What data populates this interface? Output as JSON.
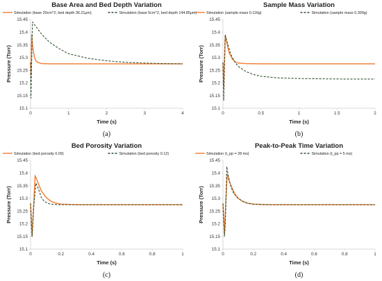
{
  "colors": {
    "orange": "#f4823a",
    "dark_green": "#2f4f2f",
    "axis": "#d9d9d9"
  },
  "chart_data": [
    {
      "panel": "a",
      "type": "line",
      "title": "Base Area and Bed Depth Variation",
      "xlabel": "Time (s)",
      "ylabel": "Pressure (Torr)",
      "xlim": [
        0,
        4
      ],
      "ylim": [
        15.1,
        15.45
      ],
      "xticks": [
        "0",
        "1",
        "2",
        "3",
        "4"
      ],
      "yticks": [
        "15.1",
        "15.15",
        "15.2",
        "15.25",
        "15.3",
        "15.35",
        "15.4",
        "15.45"
      ],
      "caption": "(a)",
      "legend": "top",
      "series": [
        {
          "name": "Simulation (base 20cm^2, bed depth 36.21μm)",
          "style": "solid",
          "x": [
            0,
            0.01,
            0.03,
            0.05,
            0.1,
            0.15,
            0.2,
            0.3,
            0.5,
            1,
            2,
            3,
            4
          ],
          "y": [
            15.28,
            15.23,
            15.39,
            15.35,
            15.3,
            15.285,
            15.28,
            15.276,
            15.275,
            15.275,
            15.275,
            15.275,
            15.275
          ]
        },
        {
          "name": "Simulation (base 5cm^2, bed depth 144.85μm)",
          "style": "dashed",
          "x": [
            0,
            0.01,
            0.05,
            0.1,
            0.2,
            0.3,
            0.5,
            0.75,
            1,
            1.5,
            2,
            2.5,
            3,
            3.5,
            4
          ],
          "y": [
            15.28,
            15.14,
            15.44,
            15.43,
            15.41,
            15.39,
            15.36,
            15.335,
            15.315,
            15.297,
            15.287,
            15.281,
            15.278,
            15.276,
            15.275
          ]
        }
      ]
    },
    {
      "panel": "b",
      "type": "line",
      "title": "Sample Mass Variation",
      "xlabel": "Time (s)",
      "ylabel": "Pressure (Torr)",
      "xlim": [
        0,
        2
      ],
      "ylim": [
        15.1,
        15.45
      ],
      "xticks": [
        "0",
        "0.5",
        "1",
        "1.5",
        "2"
      ],
      "yticks": [
        "15.1",
        "15.15",
        "15.2",
        "15.25",
        "15.3",
        "15.35",
        "15.4",
        "15.45"
      ],
      "caption": "(b)",
      "legend": "top",
      "series": [
        {
          "name": "Simulation (sample mass 0.116g)",
          "style": "solid",
          "x": [
            0,
            0.01,
            0.03,
            0.05,
            0.08,
            0.12,
            0.16,
            0.2,
            0.3,
            0.5,
            1,
            1.5,
            2
          ],
          "y": [
            15.28,
            15.18,
            15.385,
            15.36,
            15.32,
            15.295,
            15.283,
            15.278,
            15.276,
            15.275,
            15.275,
            15.275,
            15.275
          ]
        },
        {
          "name": "Simulation (sample mass 0.300g)",
          "style": "dashed",
          "x": [
            0,
            0.01,
            0.03,
            0.06,
            0.1,
            0.15,
            0.2,
            0.3,
            0.4,
            0.5,
            0.7,
            1,
            1.3,
            1.6,
            2
          ],
          "y": [
            15.28,
            15.13,
            15.39,
            15.355,
            15.315,
            15.285,
            15.265,
            15.245,
            15.233,
            15.226,
            15.22,
            15.217,
            15.216,
            15.215,
            15.215
          ]
        }
      ]
    },
    {
      "panel": "c",
      "type": "line",
      "title": "Bed Porosity Variation",
      "xlabel": "Time (s)",
      "ylabel": "Pressure (Torr)",
      "xlim": [
        0,
        1
      ],
      "ylim": [
        15.1,
        15.45
      ],
      "xticks": [
        "0",
        "0.2",
        "0.4",
        "0.6",
        "0.8",
        "1"
      ],
      "yticks": [
        "15.1",
        "15.15",
        "15.2",
        "15.25",
        "15.3",
        "15.35",
        "15.4",
        "15.45"
      ],
      "caption": "(c)",
      "legend": "top",
      "series": [
        {
          "name": "Simulation (bed porosity 0.09)",
          "style": "solid",
          "x": [
            0,
            0.01,
            0.03,
            0.05,
            0.07,
            0.1,
            0.13,
            0.16,
            0.2,
            0.3,
            0.5,
            1
          ],
          "y": [
            15.28,
            15.15,
            15.39,
            15.36,
            15.33,
            15.305,
            15.29,
            15.282,
            15.277,
            15.275,
            15.275,
            15.275
          ]
        },
        {
          "name": "Simulation (bed porosity 0.12)",
          "style": "dashed",
          "x": [
            0,
            0.01,
            0.02,
            0.035,
            0.05,
            0.07,
            0.09,
            0.12,
            0.15,
            0.2,
            0.3,
            1
          ],
          "y": [
            15.28,
            15.15,
            15.26,
            15.36,
            15.34,
            15.305,
            15.288,
            15.279,
            15.276,
            15.275,
            15.275,
            15.275
          ]
        }
      ]
    },
    {
      "panel": "d",
      "type": "line",
      "title": "Peak-to-Peak Time Variation",
      "xlabel": "Time (s)",
      "ylabel": "Pressure (Torr)",
      "xlim": [
        0,
        1
      ],
      "ylim": [
        15.1,
        15.45
      ],
      "xticks": [
        "0",
        "0.2",
        "0.4",
        "0.6",
        "0.8",
        "1"
      ],
      "yticks": [
        "15.1",
        "15.15",
        "15.2",
        "15.25",
        "15.3",
        "15.35",
        "15.4",
        "15.45"
      ],
      "caption": "(d)",
      "legend": "top",
      "series": [
        {
          "name": "Simulation (t_pp = 28 ms)",
          "style": "solid",
          "x": [
            0,
            0.01,
            0.02,
            0.028,
            0.04,
            0.06,
            0.08,
            0.1,
            0.13,
            0.16,
            0.2,
            0.3,
            1
          ],
          "y": [
            15.28,
            15.16,
            15.3,
            15.395,
            15.37,
            15.34,
            15.315,
            15.3,
            15.288,
            15.281,
            15.277,
            15.275,
            15.275
          ]
        },
        {
          "name": "Simulation (t_pp = 5 ms)",
          "style": "dashed",
          "x": [
            0,
            0.01,
            0.016,
            0.025,
            0.035,
            0.05,
            0.07,
            0.1,
            0.13,
            0.16,
            0.2,
            0.3,
            1
          ],
          "y": [
            15.28,
            15.15,
            15.2,
            15.425,
            15.39,
            15.35,
            15.32,
            15.3,
            15.288,
            15.281,
            15.277,
            15.275,
            15.275
          ]
        }
      ]
    }
  ]
}
